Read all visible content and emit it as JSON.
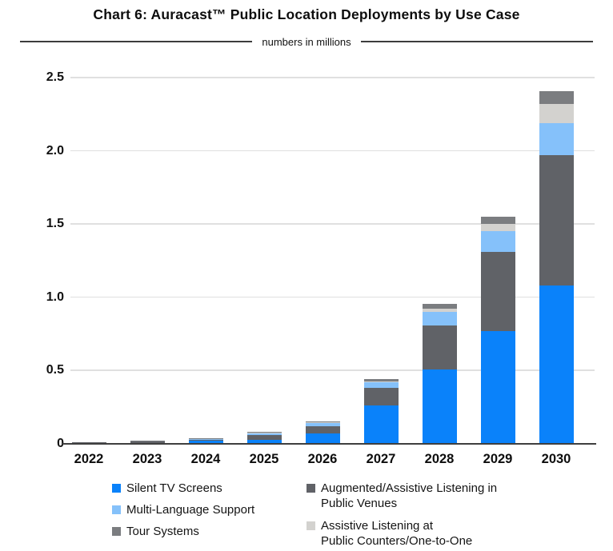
{
  "title": "Chart 6: Auracast™ Public Location Deployments by Use Case",
  "subtitle": "numbers in millions",
  "chart_data": {
    "type": "bar",
    "stacked": true,
    "title": "Chart 6: Auracast™ Public Location Deployments by Use Case",
    "subtitle": "numbers in millions",
    "unit": "millions",
    "categories": [
      "2022",
      "2023",
      "2024",
      "2025",
      "2026",
      "2027",
      "2028",
      "2029",
      "2030"
    ],
    "stack_order": [
      "silent_tv",
      "augmented_assistive",
      "multi_language",
      "assistive_counters",
      "tour_systems"
    ],
    "series": [
      {
        "key": "silent_tv",
        "name": "Silent TV Screens",
        "color": "#0a82fa",
        "values": [
          0.005,
          0.008,
          0.02,
          0.03,
          0.07,
          0.26,
          0.51,
          0.77,
          1.08
        ]
      },
      {
        "key": "augmented_assistive",
        "name": "Augmented/Assistive Listening in Public Venues",
        "color": "#606267",
        "values": [
          0.004,
          0.007,
          0.01,
          0.03,
          0.05,
          0.12,
          0.3,
          0.54,
          0.89
        ]
      },
      {
        "key": "multi_language",
        "name": "Multi-Language Support",
        "color": "#85c1fa",
        "values": [
          0.002,
          0.003,
          0.004,
          0.012,
          0.02,
          0.038,
          0.09,
          0.14,
          0.22
        ]
      },
      {
        "key": "assistive_counters",
        "name": "Assistive Listening at Public Counters/One-to-One",
        "color": "#d3d2cf",
        "values": [
          0.001,
          0.001,
          0.001,
          0.002,
          0.005,
          0.009,
          0.02,
          0.05,
          0.13
        ]
      },
      {
        "key": "tour_systems",
        "name": "Tour Systems",
        "color": "#7b7d80",
        "values": [
          0.001,
          0.002,
          0.003,
          0.006,
          0.01,
          0.015,
          0.035,
          0.05,
          0.09
        ]
      }
    ],
    "totals": [
      0.013,
      0.021,
      0.038,
      0.08,
      0.155,
      0.442,
      0.955,
      1.55,
      2.41
    ],
    "yticks": [
      {
        "label": "0",
        "value": 0
      },
      {
        "label": "0.5",
        "value": 0.5
      },
      {
        "label": "1.0",
        "value": 1.0
      },
      {
        "label": "1.5",
        "value": 1.5
      },
      {
        "label": "2.0",
        "value": 2.0
      },
      {
        "label": "2.5",
        "value": 2.5
      }
    ],
    "ylim": [
      0,
      2.5
    ],
    "grid": "horizontal",
    "legend_position": "bottom"
  },
  "legend": {
    "left": [
      {
        "series": "silent_tv",
        "label": "Silent TV Screens"
      },
      {
        "series": "multi_language",
        "label": "Multi-Language Support"
      },
      {
        "series": "tour_systems",
        "label": "Tour Systems"
      }
    ],
    "right": [
      {
        "series": "augmented_assistive",
        "line1": "Augmented/Assistive Listening in",
        "line2": "Public Venues"
      },
      {
        "series": "assistive_counters",
        "line1": "Assistive Listening at",
        "line2": "Public Counters/One-to-One"
      }
    ]
  },
  "colors": {
    "axis": "#3f3f3f",
    "grid": "#e0e0e0",
    "text": "#141414"
  }
}
